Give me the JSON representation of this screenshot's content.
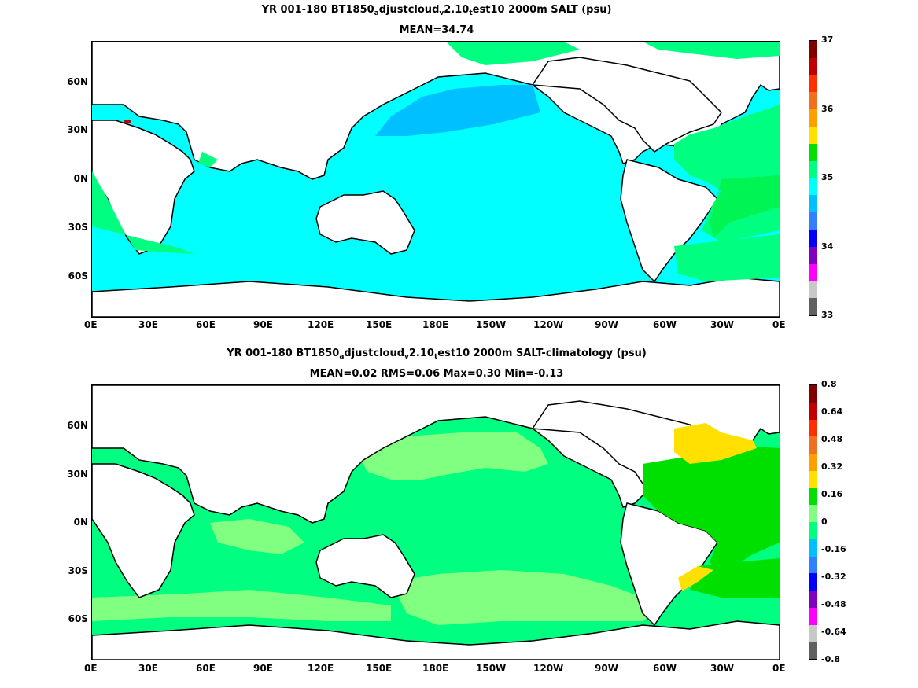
{
  "panels": [
    {
      "id": "top",
      "title_parts": [
        "YR 001-180 BT1850",
        "a",
        "djustcloud",
        "v",
        "2.10",
        "t",
        "est10 2000m SALT (psu)"
      ],
      "stats": "MEAN=34.74",
      "xticks": [
        "0E",
        "30E",
        "60E",
        "90E",
        "120E",
        "150E",
        "180E",
        "150W",
        "120W",
        "90W",
        "60W",
        "30W",
        "0E"
      ],
      "yticks": [
        "60N",
        "30N",
        "0N",
        "30S",
        "60S"
      ],
      "colorbar": {
        "labels": [
          "37",
          "36",
          "35",
          "34",
          "33"
        ],
        "colors": [
          "#800000",
          "#c00000",
          "#ff3000",
          "#f07020",
          "#ffa000",
          "#ffe000",
          "#00e000",
          "#00ff80",
          "#00ffff",
          "#00c0ff",
          "#3080ff",
          "#0000ff",
          "#8000c0",
          "#ff00ff",
          "#c8c8c8",
          "#606060"
        ]
      }
    },
    {
      "id": "bottom",
      "title_parts": [
        "YR 001-180 BT1850",
        "a",
        "djustcloud",
        "v",
        "2.10",
        "t",
        "est10 2000m SALT-climatology (psu)"
      ],
      "stats": "MEAN=0.02   RMS=0.06   Max=0.30   Min=-0.13",
      "xticks": [
        "0E",
        "30E",
        "60E",
        "90E",
        "120E",
        "150E",
        "180E",
        "150W",
        "120W",
        "90W",
        "60W",
        "30W",
        "0E"
      ],
      "yticks": [
        "60N",
        "30N",
        "0N",
        "30S",
        "60S"
      ],
      "colorbar": {
        "labels": [
          "0.8",
          "0.64",
          "0.48",
          "0.32",
          "0.16",
          "0",
          "-0.16",
          "-0.32",
          "-0.48",
          "-0.64",
          "-0.8"
        ],
        "colors": [
          "#800000",
          "#c00000",
          "#ff3000",
          "#f07020",
          "#ffa000",
          "#ffe000",
          "#00e000",
          "#80ff80",
          "#00ff80",
          "#00c0ff",
          "#3080ff",
          "#0000ff",
          "#8000c0",
          "#ff00ff",
          "#c8c8c8",
          "#606060"
        ]
      }
    }
  ]
}
